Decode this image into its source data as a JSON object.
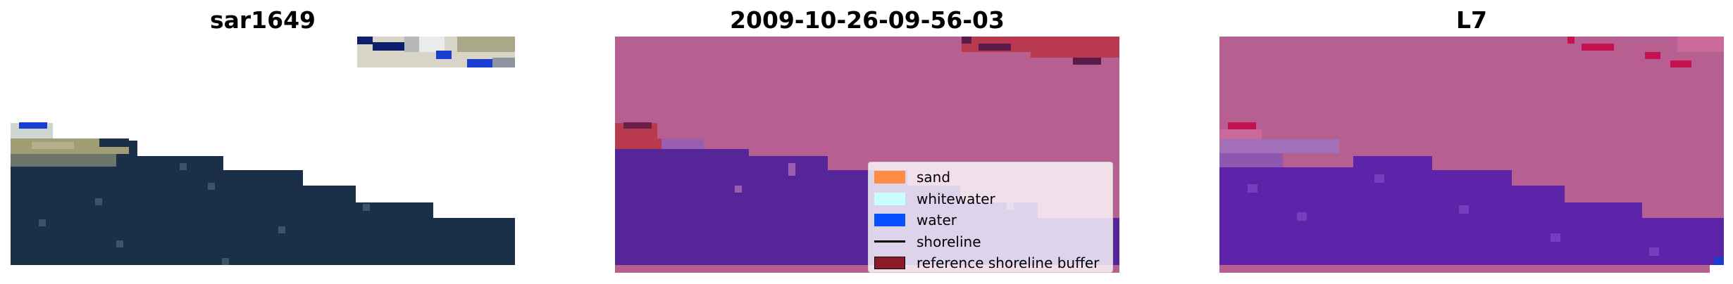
{
  "panels": [
    {
      "title": "sar1649"
    },
    {
      "title": "2009-10-26-09-56-03"
    },
    {
      "title": "L7"
    }
  ],
  "legend": {
    "items": [
      {
        "label": "sand",
        "color": "#ff8c42",
        "kind": "patch"
      },
      {
        "label": "whitewater",
        "color": "#c8ffff",
        "kind": "patch"
      },
      {
        "label": "water",
        "color": "#0a50ff",
        "kind": "patch"
      },
      {
        "label": "shoreline",
        "color": "#000000",
        "kind": "line"
      },
      {
        "label": "reference shoreline buffer",
        "color": "#8b1a2a",
        "kind": "patch"
      }
    ]
  },
  "colors": {
    "sea": "#1b2f48",
    "pink": "#b85f91",
    "purple": "#57259a",
    "red": "#b9394f"
  }
}
